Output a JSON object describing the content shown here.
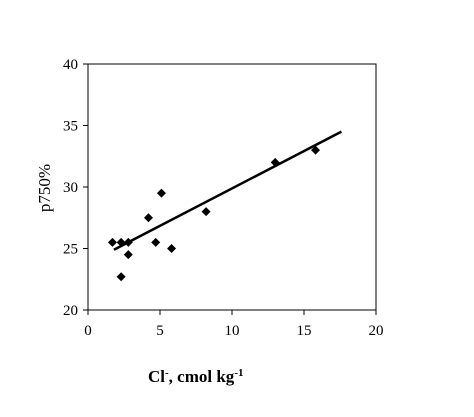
{
  "chart_data": {
    "type": "scatter",
    "title": "",
    "xlabel": "Cl",
    "xlabel_sup1": "-",
    "xlabel_mid": ", cmol kg",
    "xlabel_sup2": "-1",
    "ylabel": "p750%",
    "xlim": [
      0,
      20
    ],
    "ylim": [
      20,
      40
    ],
    "xticks": [
      0,
      5,
      10,
      15,
      20
    ],
    "yticks": [
      20,
      25,
      30,
      35,
      40
    ],
    "grid": false,
    "legend": "none",
    "marker": "diamond",
    "marker_color": "#000000",
    "series": [
      {
        "points": [
          {
            "x": 1.7,
            "y": 25.5
          },
          {
            "x": 2.3,
            "y": 25.5
          },
          {
            "x": 2.8,
            "y": 25.5
          },
          {
            "x": 2.8,
            "y": 24.5
          },
          {
            "x": 2.3,
            "y": 22.7
          },
          {
            "x": 4.2,
            "y": 27.5
          },
          {
            "x": 4.7,
            "y": 25.5
          },
          {
            "x": 5.1,
            "y": 29.5
          },
          {
            "x": 5.8,
            "y": 25.0
          },
          {
            "x": 8.2,
            "y": 28.0
          },
          {
            "x": 13.0,
            "y": 32.0
          },
          {
            "x": 15.8,
            "y": 33.0
          }
        ]
      }
    ],
    "trendline": {
      "x": [
        1.8,
        17.6
      ],
      "y": [
        24.9,
        34.5
      ]
    }
  }
}
